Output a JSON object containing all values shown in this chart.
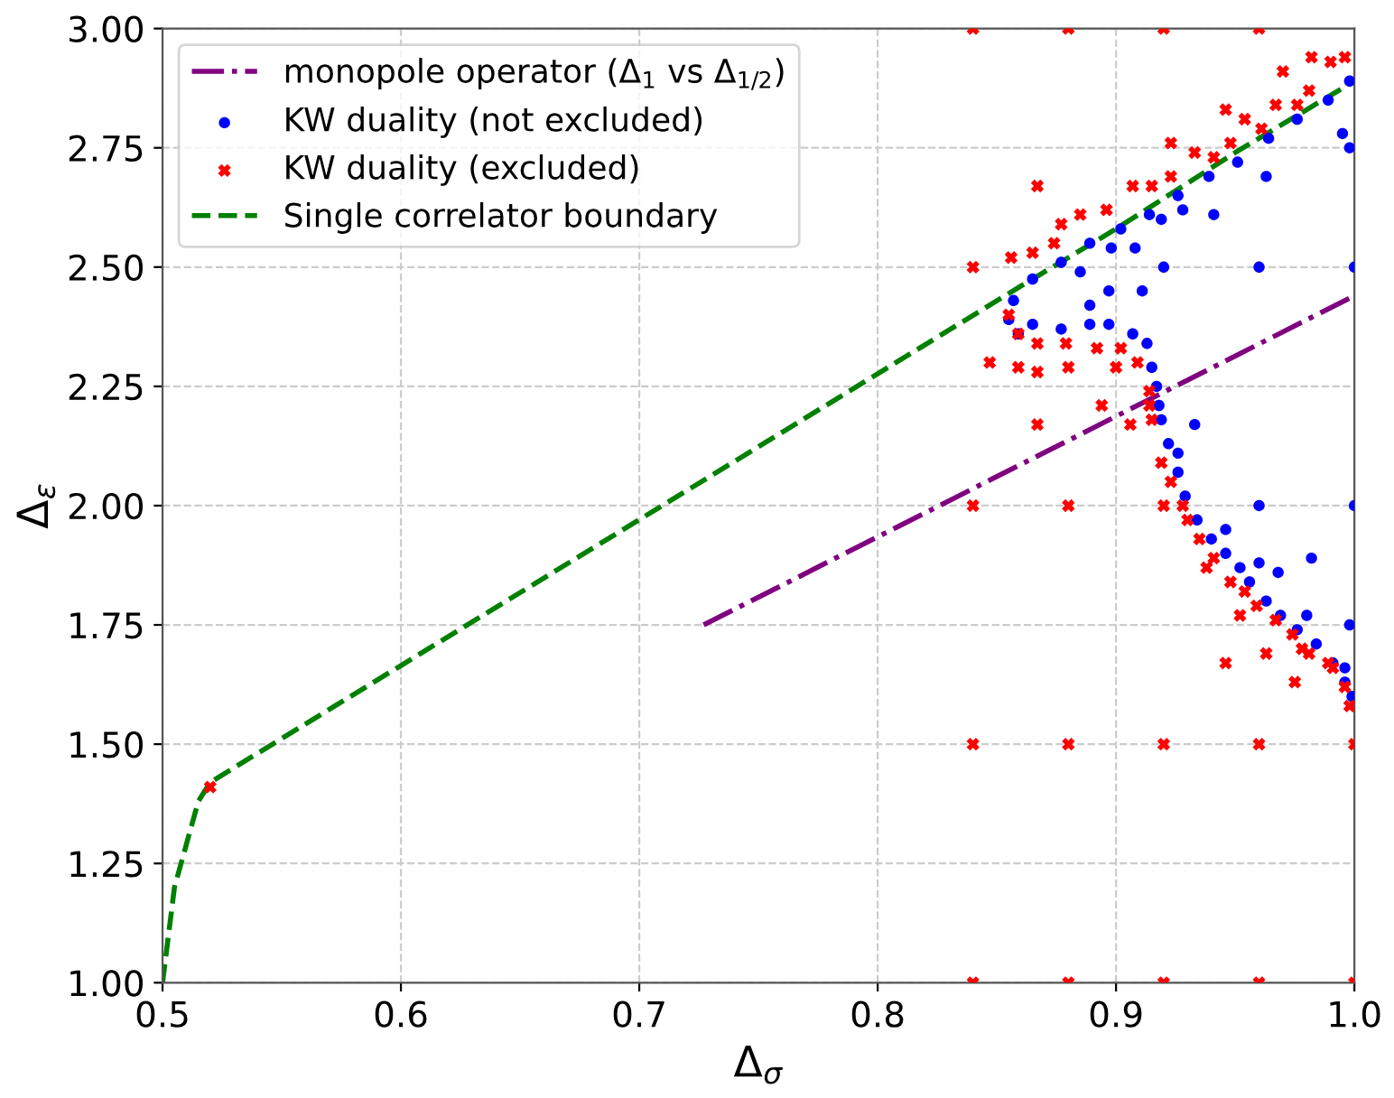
{
  "chart_data": {
    "type": "scatter",
    "xlabel": "Δ$_{σ}$",
    "ylabel": "Δ$_{ε}$",
    "xlim": [
      0.5,
      1.0
    ],
    "ylim": [
      1.0,
      3.0
    ],
    "xticks": [
      0.5,
      0.6,
      0.7,
      0.8,
      0.9,
      {
        "value": 1.0,
        "label": "1.0"
      }
    ],
    "yticks": [
      {
        "value": 1.0,
        "label": "1.00"
      },
      {
        "value": 1.25,
        "label": "1.25"
      },
      {
        "value": 1.5,
        "label": "1.50"
      },
      {
        "value": 1.75,
        "label": "1.75"
      },
      {
        "value": 2.0,
        "label": "2.00"
      },
      {
        "value": 2.25,
        "label": "2.25"
      },
      {
        "value": 2.5,
        "label": "2.50"
      },
      {
        "value": 2.75,
        "label": "2.75"
      },
      {
        "value": 3.0,
        "label": "3.00"
      }
    ],
    "grid": true,
    "legend": "top left",
    "series": [
      {
        "name": "monopole operator (Δ$_{1}$ vs Δ$_{1/2}$)",
        "type": "line",
        "line_style": "dashdot",
        "marker": "none",
        "color": "#800080",
        "x": [
          0.727,
          1.0
        ],
        "values": [
          1.75,
          2.44
        ]
      },
      {
        "name": "KW duality (not excluded)",
        "marker": "circle",
        "color": "#0000ff",
        "x": [
          0.857,
          0.865,
          0.877,
          0.889,
          0.902,
          0.914,
          0.926,
          0.939,
          0.951,
          0.964,
          0.976,
          0.989,
          0.998,
          0.885,
          0.898,
          0.908,
          0.919,
          0.928,
          0.941,
          0.963,
          0.995,
          0.998,
          0.889,
          0.897,
          0.911,
          0.855,
          0.859,
          0.865,
          0.877,
          0.889,
          0.897,
          0.907,
          0.913,
          0.915,
          0.917,
          0.918,
          0.919,
          0.922,
          0.926,
          0.929,
          0.934,
          0.94,
          0.946,
          0.952,
          0.956,
          0.963,
          0.969,
          0.976,
          0.984,
          0.991,
          0.996,
          0.933,
          0.946,
          0.96,
          0.968,
          0.982,
          0.98,
          0.998,
          0.926,
          0.996,
          0.999,
          0.92,
          0.96,
          1.0,
          0.96,
          1.0
        ],
        "values": [
          2.43,
          2.475,
          2.51,
          2.55,
          2.58,
          2.61,
          2.65,
          2.69,
          2.72,
          2.77,
          2.81,
          2.85,
          2.89,
          2.49,
          2.54,
          2.54,
          2.6,
          2.62,
          2.61,
          2.69,
          2.78,
          2.75,
          2.42,
          2.45,
          2.45,
          2.39,
          2.36,
          2.38,
          2.37,
          2.38,
          2.38,
          2.36,
          2.34,
          2.29,
          2.25,
          2.21,
          2.18,
          2.13,
          2.07,
          2.02,
          1.97,
          1.93,
          1.9,
          1.87,
          1.84,
          1.8,
          1.77,
          1.74,
          1.71,
          1.67,
          1.66,
          2.17,
          1.95,
          1.88,
          1.86,
          1.89,
          1.77,
          1.75,
          2.11,
          1.63,
          1.6,
          2.5,
          2.5,
          2.5,
          2.0,
          2.0
        ]
      },
      {
        "name": "KW duality (excluded)",
        "marker": "cross",
        "color": "#ff0000",
        "x": [
          0.84,
          0.88,
          0.92,
          0.96,
          1.0,
          0.84,
          0.88,
          0.92,
          0.96,
          1.0,
          0.84,
          0.88,
          0.92,
          0.84,
          0.84,
          0.88,
          0.92,
          0.96,
          0.52,
          0.856,
          0.865,
          0.874,
          0.877,
          0.885,
          0.896,
          0.907,
          0.915,
          0.923,
          0.933,
          0.941,
          0.948,
          0.954,
          0.961,
          0.967,
          0.976,
          0.981,
          0.99,
          0.996,
          0.982,
          0.97,
          0.946,
          0.923,
          0.867,
          0.855,
          0.859,
          0.867,
          0.879,
          0.892,
          0.902,
          0.909,
          0.914,
          0.915,
          0.919,
          0.923,
          0.928,
          0.93,
          0.935,
          0.941,
          0.948,
          0.954,
          0.959,
          0.967,
          0.974,
          0.981,
          0.989,
          0.847,
          0.859,
          0.867,
          0.88,
          0.9,
          0.894,
          0.867,
          0.906,
          0.914,
          0.938,
          0.952,
          0.963,
          0.946,
          0.975,
          0.978,
          0.991,
          0.996,
          0.998
        ],
        "values": [
          1.0,
          1.0,
          1.0,
          1.0,
          1.0,
          1.5,
          1.5,
          1.5,
          1.5,
          1.5,
          2.0,
          2.0,
          2.0,
          2.5,
          3.0,
          3.0,
          3.0,
          3.0,
          1.41,
          2.52,
          2.53,
          2.55,
          2.59,
          2.61,
          2.62,
          2.67,
          2.67,
          2.69,
          2.74,
          2.73,
          2.76,
          2.81,
          2.79,
          2.84,
          2.84,
          2.87,
          2.93,
          2.94,
          2.94,
          2.91,
          2.83,
          2.76,
          2.67,
          2.4,
          2.36,
          2.34,
          2.34,
          2.33,
          2.33,
          2.3,
          2.24,
          2.18,
          2.09,
          2.05,
          2.0,
          1.97,
          1.93,
          1.89,
          1.84,
          1.82,
          1.79,
          1.76,
          1.73,
          1.69,
          1.67,
          2.3,
          2.29,
          2.28,
          2.29,
          2.29,
          2.21,
          2.17,
          2.17,
          2.21,
          1.87,
          1.77,
          1.69,
          1.67,
          1.63,
          1.7,
          1.66,
          1.62,
          1.58
        ]
      },
      {
        "name": "Single correlator boundary",
        "type": "line",
        "line_style": "dashed",
        "marker": "none",
        "color": "#008000",
        "x": [
          0.5,
          0.505,
          0.515,
          0.52,
          0.86,
          0.9,
          0.95,
          1.0
        ],
        "values": [
          1.0,
          1.2,
          1.38,
          1.42,
          2.46,
          2.58,
          2.74,
          2.89
        ]
      }
    ]
  }
}
